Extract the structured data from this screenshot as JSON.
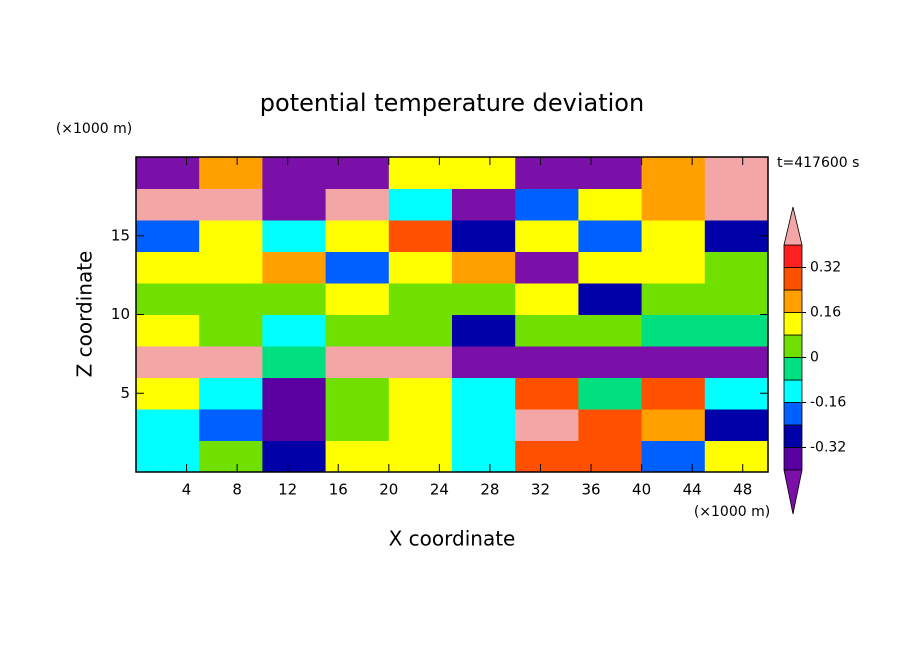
{
  "chart_data": {
    "type": "contour",
    "title": "potential temperature deviation",
    "xlabel": "X coordinate",
    "ylabel": "Z coordinate",
    "xunit": "(×1000 m)",
    "yunit": "(×1000 m)",
    "annotation": "t=417600 s",
    "xlim": [
      0,
      50
    ],
    "ylim": [
      0,
      20
    ],
    "xticks": [
      4,
      8,
      12,
      16,
      20,
      24,
      28,
      32,
      36,
      40,
      44,
      48
    ],
    "yticks": [
      5,
      10,
      15
    ],
    "xbins": [
      0,
      5,
      10,
      15,
      20,
      25,
      30,
      35,
      40,
      45,
      50
    ],
    "zbins": [
      0,
      2,
      4,
      6,
      8,
      10,
      12,
      14,
      16,
      18,
      20
    ],
    "values": [
      [
        -0.1,
        0.05,
        -0.3,
        0.1,
        0.1,
        -0.1,
        0.3,
        0.3,
        -0.2,
        0.1
      ],
      [
        -0.1,
        -0.2,
        -0.4,
        0.05,
        0.1,
        -0.1,
        0.44,
        0.3,
        0.2,
        -0.3
      ],
      [
        0.1,
        -0.1,
        -0.38,
        0.05,
        0.1,
        -0.1,
        0.3,
        -0.05,
        0.3,
        -0.1
      ],
      [
        0.45,
        0.45,
        -0.05,
        0.45,
        0.45,
        -0.44,
        -0.44,
        -0.44,
        -0.44,
        -0.44
      ],
      [
        0.1,
        0.05,
        -0.1,
        0.05,
        0.05,
        -0.3,
        0.05,
        0.05,
        -0.05,
        -0.05
      ],
      [
        0.05,
        0.05,
        0.05,
        0.1,
        0.05,
        0.05,
        0.1,
        -0.3,
        0.05,
        0.05
      ],
      [
        0.1,
        0.1,
        0.2,
        -0.2,
        0.15,
        0.2,
        -0.44,
        0.1,
        0.1,
        0.05
      ],
      [
        -0.2,
        0.1,
        -0.1,
        0.1,
        0.3,
        -0.3,
        0.1,
        -0.2,
        0.1,
        -0.3
      ],
      [
        0.45,
        0.45,
        -0.44,
        0.45,
        -0.1,
        -0.44,
        -0.2,
        0.1,
        0.2,
        0.45
      ],
      [
        -0.44,
        0.2,
        -0.44,
        -0.44,
        0.1,
        0.1,
        -0.44,
        -0.44,
        0.2,
        0.45
      ]
    ],
    "levels": [
      -0.4,
      -0.32,
      -0.24,
      -0.16,
      -0.08,
      0,
      0.08,
      0.16,
      0.24,
      0.32,
      0.4
    ],
    "colors": [
      "#7a10a8",
      "#5a00a0",
      "#0000a8",
      "#0060ff",
      "#00ffff",
      "#00e080",
      "#70e000",
      "#ffff00",
      "#ffa000",
      "#ff5000",
      "#ff2020",
      "#f4a6a6"
    ],
    "cbar_ticks": [
      -0.32,
      -0.16,
      0,
      0.16,
      0.32
    ]
  }
}
